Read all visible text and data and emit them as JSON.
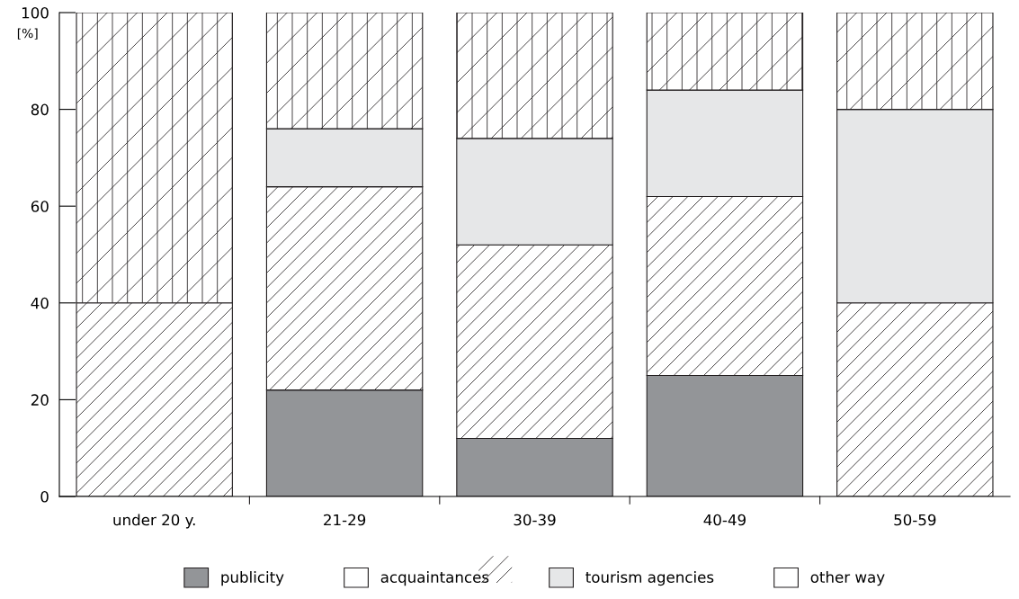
{
  "chart_data": {
    "type": "bar",
    "stacked": true,
    "ylabel": "[%]",
    "categories": [
      "under 20 y.",
      "21-29",
      "30-39",
      "40-49",
      "50-59"
    ],
    "series": [
      {
        "name": "publicity",
        "color": "#939598",
        "values": [
          0,
          22,
          12,
          25,
          0
        ]
      },
      {
        "name": "acquaintances",
        "color": "#ffffff",
        "values": [
          40,
          42,
          40,
          37,
          40
        ]
      },
      {
        "name": "tourism agencies",
        "color": "#e6e7e8",
        "values": [
          0,
          12,
          22,
          22,
          40
        ]
      },
      {
        "name": "other way",
        "color": "#ffffff",
        "values": [
          60,
          24,
          26,
          16,
          20
        ]
      }
    ],
    "ylim": [
      0,
      100
    ],
    "yticks": [
      0,
      20,
      40,
      60,
      80,
      100
    ],
    "grid": false,
    "legend": "bottom"
  }
}
